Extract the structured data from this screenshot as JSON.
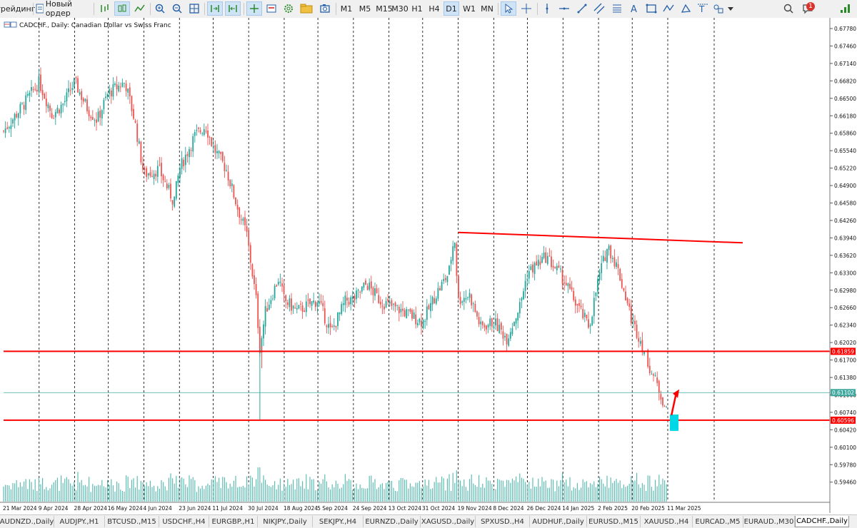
{
  "toolbar": {
    "trading_label": "трейдинг",
    "new_order_label": "Новый ордер",
    "timeframes": [
      "M1",
      "M5",
      "M15",
      "M30",
      "H1",
      "H4",
      "D1",
      "W1",
      "MN"
    ],
    "active_timeframe": "D1",
    "notification_count": "1"
  },
  "chart": {
    "title": "CADCHF., Daily:  Canadian Dollar vs Swiss Franc",
    "price_ticks": [
      "0.67780",
      "0.67460",
      "0.67140",
      "0.66820",
      "0.66500",
      "0.66180",
      "0.65860",
      "0.65540",
      "0.65220",
      "0.64900",
      "0.64580",
      "0.64260",
      "0.63940",
      "0.63620",
      "0.63300",
      "0.62980",
      "0.62660",
      "0.62340",
      "0.62020",
      "0.61700",
      "0.61380",
      "0.61060",
      "0.60740",
      "0.60420",
      "0.60100",
      "0.59780",
      "0.59460"
    ],
    "date_ticks": [
      "21 Mar 2024",
      "9 Apr 2024",
      "28 Apr 2024",
      "16 May 2024",
      "4 Jun 2024",
      "23 Jun 2024",
      "11 Jul 2024",
      "30 Jul 2024",
      "18 Aug 2024",
      "5 Sep 2024",
      "24 Sep 2024",
      "13 Oct 2024",
      "31 Oct 2024",
      "19 Nov 2024",
      "8 Dec 2024",
      "26 Dec 2024",
      "14 Jan 2025",
      "2 Feb 2025",
      "20 Feb 2025",
      "11 Mar 2025"
    ],
    "levels": {
      "upper": "0.61859",
      "current": "0.61102",
      "lower": "0.60596"
    },
    "colors": {
      "bull": "#26a69a",
      "bear": "#ef5350",
      "level": "#ff0000",
      "current_line": "#3fa9a0",
      "highlight": "#00d8e8",
      "grid": "#000000"
    }
  },
  "chart_data": {
    "type": "candlestick",
    "symbol": "CADCHF.",
    "timeframe": "Daily",
    "ylim": [
      0.5928,
      0.679
    ],
    "xlim": [
      "21 Mar 2024",
      "late Mar 2025"
    ],
    "close_path": [
      [
        "21 Mar 2024",
        0.659
      ],
      [
        "1 Apr 2024",
        0.664
      ],
      [
        "9 Apr 2024",
        0.668
      ],
      [
        "16 Apr 2024",
        0.662
      ],
      [
        "22 Apr 2024",
        0.664
      ],
      [
        "28 Apr 2024",
        0.668
      ],
      [
        "5 May 2024",
        0.663
      ],
      [
        "10 May 2024",
        0.661
      ],
      [
        "16 May 2024",
        0.666
      ],
      [
        "25 May 2024",
        0.668
      ],
      [
        "30 May 2024",
        0.661
      ],
      [
        "4 Jun 2024",
        0.651
      ],
      [
        "12 Jun 2024",
        0.652
      ],
      [
        "20 Jun 2024",
        0.646
      ],
      [
        "23 Jun 2024",
        0.652
      ],
      [
        "1 Jul 2024",
        0.658
      ],
      [
        "7 Jul 2024",
        0.66
      ],
      [
        "11 Jul 2024",
        0.656
      ],
      [
        "18 Jul 2024",
        0.652
      ],
      [
        "24 Jul 2024",
        0.645
      ],
      [
        "29 Jul 2024",
        0.64
      ],
      [
        "3 Aug 2024",
        0.628
      ],
      [
        "5 Aug 2024",
        0.619
      ],
      [
        "8 Aug 2024",
        0.626
      ],
      [
        "15 Aug 2024",
        0.632
      ],
      [
        "18 Aug 2024",
        0.628
      ],
      [
        "25 Aug 2024",
        0.626
      ],
      [
        "5 Sep 2024",
        0.628
      ],
      [
        "12 Sep 2024",
        0.622
      ],
      [
        "20 Sep 2024",
        0.628
      ],
      [
        "24 Sep 2024",
        0.628
      ],
      [
        "1 Oct 2024",
        0.631
      ],
      [
        "8 Oct 2024",
        0.628
      ],
      [
        "13 Oct 2024",
        0.627
      ],
      [
        "20 Oct 2024",
        0.626
      ],
      [
        "31 Oct 2024",
        0.624
      ],
      [
        "7 Nov 2024",
        0.629
      ],
      [
        "14 Nov 2024",
        0.633
      ],
      [
        "17 Nov 2024",
        0.64
      ],
      [
        "19 Nov 2024",
        0.628
      ],
      [
        "25 Nov 2024",
        0.629
      ],
      [
        "1 Dec 2024",
        0.623
      ],
      [
        "8 Dec 2024",
        0.624
      ],
      [
        "15 Dec 2024",
        0.621
      ],
      [
        "22 Dec 2024",
        0.627
      ],
      [
        "26 Dec 2024",
        0.633
      ],
      [
        "5 Jan 2025",
        0.636
      ],
      [
        "14 Jan 2025",
        0.632
      ],
      [
        "20 Jan 2025",
        0.628
      ],
      [
        "28 Jan 2025",
        0.623
      ],
      [
        "2 Feb 2025",
        0.632
      ],
      [
        "7 Feb 2025",
        0.638
      ],
      [
        "12 Feb 2025",
        0.634
      ],
      [
        "17 Feb 2025",
        0.628
      ],
      [
        "20 Feb 2025",
        0.624
      ],
      [
        "24 Feb 2025",
        0.621
      ],
      [
        "1 Mar 2025",
        0.616
      ],
      [
        "7 Mar 2025",
        0.611
      ],
      [
        "11 Mar 2025",
        0.607
      ]
    ],
    "trendline": {
      "from": [
        "19 Nov 2024",
        0.6404
      ],
      "to": [
        "late Mar 2025",
        0.6385
      ]
    },
    "horizontal_levels": [
      0.61859,
      0.61102,
      0.60596
    ],
    "annotation": {
      "type": "arrow",
      "from": [
        "13 Mar 2025",
        0.6069
      ],
      "to": [
        "16 Mar 2025",
        0.6111
      ]
    },
    "volume": "histogram",
    "grid": "vertical dashed"
  },
  "tabs": [
    "AUDNZD.,Daily",
    "AUDJPY.,H1",
    "BTCUSD.,M15",
    "USDCHF.,H4",
    "EURGBP.,H1",
    "NIKJPY.,Daily",
    "SEKJPY.,H4",
    "EURNZD.,Daily",
    "XAGUSD.,Daily",
    "SPXUSD.,H4",
    "AUDHUF.,Daily",
    "EURUSD.,M15",
    "XAUUSD.,H4",
    "EURCAD.,M5",
    "EURAUD.,M30",
    "CADCHF.,Daily"
  ],
  "active_tab": "CADCHF.,Daily"
}
